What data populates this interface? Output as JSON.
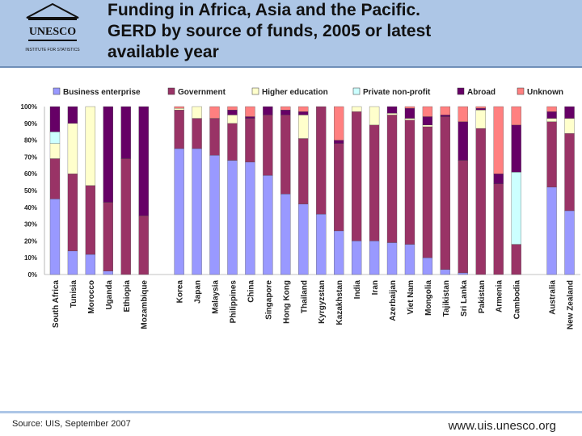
{
  "header": {
    "title_lines": [
      "Funding in Africa, Asia and the Pacific.",
      "GERD by source of funds, 2005 or latest",
      "available year"
    ],
    "logo": {
      "name": "UNESCO",
      "subtitle": "INSTITUTE FOR STATISTICS"
    }
  },
  "footer": {
    "source": "Source: UIS, September 2007",
    "url": "www.uis.unesco.org"
  },
  "colors": {
    "header_bg": "#adc6e6",
    "series": [
      "#9999ff",
      "#993366",
      "#ffffcc",
      "#ccffff",
      "#660066",
      "#ff8080"
    ]
  },
  "chart_data": {
    "type": "bar",
    "stacked": true,
    "title": "GERD by source of funds, 2005 or latest available year",
    "ylim": [
      0,
      100
    ],
    "yticks": [
      "0%",
      "10%",
      "20%",
      "30%",
      "40%",
      "50%",
      "60%",
      "70%",
      "80%",
      "90%",
      "100%"
    ],
    "legend_position": "top",
    "categories": [
      "South Africa",
      "Tunisia",
      "Morocco",
      "Uganda",
      "Ethiopia",
      "Mozambique",
      "",
      "Korea",
      "Japan",
      "Malaysia",
      "Philippines",
      "China",
      "Singapore",
      "Hong Kong",
      "Thailand",
      "Kyrgyzstan",
      "Kazakhstan",
      "India",
      "Iran",
      "Azerbaijan",
      "Viet Nam",
      "Mongolia",
      "Tajikistan",
      "Sri Lanka",
      "Pakistan",
      "Armenia",
      "Cambodia",
      "",
      "Australia",
      "New Zealand"
    ],
    "series": [
      {
        "name": "Business enterprise",
        "values": [
          45,
          14,
          12,
          2,
          0,
          0,
          0,
          75,
          75,
          71,
          68,
          67,
          59,
          48,
          42,
          36,
          26,
          20,
          20,
          19,
          18,
          10,
          3,
          1,
          0,
          0,
          0,
          0,
          52,
          38
        ]
      },
      {
        "name": "Government",
        "values": [
          24,
          46,
          41,
          41,
          69,
          35,
          0,
          23,
          18,
          22,
          22,
          26,
          36,
          47,
          39,
          64,
          52,
          77,
          69,
          76,
          74,
          78,
          91,
          67,
          87,
          54,
          18,
          0,
          39,
          46
        ]
      },
      {
        "name": "Higher education",
        "values": [
          9,
          30,
          47,
          0,
          0,
          0,
          0,
          1,
          7,
          0,
          5,
          0,
          0,
          0,
          14,
          0,
          0,
          3,
          11,
          1,
          1,
          1,
          0,
          0,
          11,
          0,
          0,
          0,
          2,
          9
        ]
      },
      {
        "name": "Private non-profit",
        "values": [
          7,
          0,
          0,
          0,
          0,
          0,
          0,
          0,
          0,
          0,
          0,
          0,
          0,
          0,
          0,
          0,
          0,
          0,
          0,
          0,
          0,
          0,
          0,
          0,
          0,
          0,
          43,
          0,
          0,
          0
        ]
      },
      {
        "name": "Abroad",
        "values": [
          15,
          10,
          0,
          57,
          31,
          65,
          0,
          0,
          0,
          0,
          3,
          1,
          5,
          3,
          2,
          0,
          2,
          0,
          0,
          4,
          6,
          5,
          1,
          23,
          1,
          6,
          28,
          0,
          4,
          7
        ]
      },
      {
        "name": "Unknown",
        "values": [
          0,
          0,
          0,
          0,
          0,
          0,
          0,
          1,
          0,
          7,
          2,
          6,
          0,
          2,
          3,
          0,
          20,
          0,
          0,
          0,
          1,
          6,
          5,
          9,
          1,
          40,
          11,
          0,
          3,
          0
        ]
      }
    ]
  }
}
